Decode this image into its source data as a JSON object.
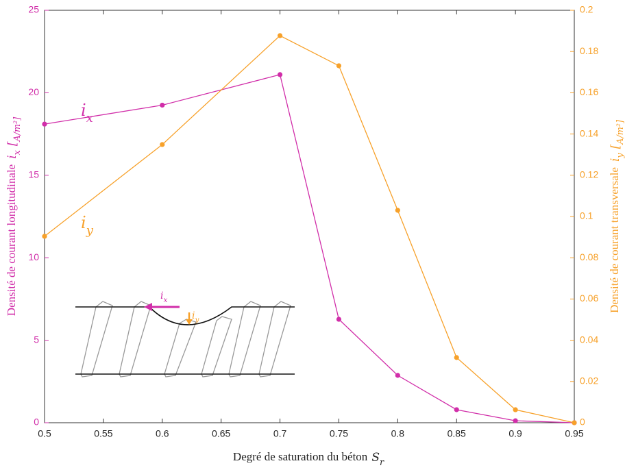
{
  "chart_data": {
    "type": "line",
    "xlabel": "Degré de saturation du béton",
    "xlabel_symbol": "Sr",
    "ylabel": "Densité de courant longitudinale",
    "ylabel_symbol": "ix",
    "ylabel_unit": "[A/m²]",
    "y2label": "Densité de courant transversale",
    "y2label_symbol": "iy",
    "y2label_unit": "[A/m²]",
    "x": [
      0.5,
      0.6,
      0.7,
      0.75,
      0.8,
      0.85,
      0.9,
      0.95
    ],
    "series": [
      {
        "name": "ix",
        "color": "#d12ea9",
        "values": [
          18.1,
          19.25,
          21.1,
          6.27,
          2.87,
          0.79,
          0.12,
          0
        ]
      },
      {
        "name": "iy",
        "color": "#f7a12a",
        "axis": "y2",
        "values": [
          0.0904,
          0.1349,
          0.1877,
          0.1731,
          0.103,
          0.0316,
          0.0063,
          0
        ]
      }
    ],
    "inset_labels": [
      "ix",
      "iy"
    ],
    "xlim": [
      0.5,
      0.95
    ],
    "xticks": [
      0.5,
      0.55,
      0.6,
      0.65,
      0.7,
      0.75,
      0.8,
      0.85,
      0.9,
      0.95
    ],
    "ylim": [
      0,
      25
    ],
    "yticks": [
      0,
      5,
      10,
      15,
      20,
      25
    ],
    "y2lim": [
      0,
      0.2
    ],
    "y2ticks": [
      0,
      0.02,
      0.04,
      0.06,
      0.08,
      0.1,
      0.12,
      0.14,
      0.16,
      0.18,
      0.2
    ]
  }
}
